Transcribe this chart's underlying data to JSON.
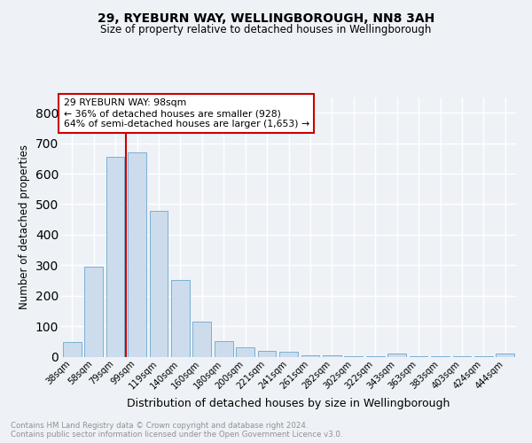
{
  "title1": "29, RYEBURN WAY, WELLINGBOROUGH, NN8 3AH",
  "title2": "Size of property relative to detached houses in Wellingborough",
  "xlabel": "Distribution of detached houses by size in Wellingborough",
  "ylabel": "Number of detached properties",
  "categories": [
    "38sqm",
    "58sqm",
    "79sqm",
    "99sqm",
    "119sqm",
    "140sqm",
    "160sqm",
    "180sqm",
    "200sqm",
    "221sqm",
    "241sqm",
    "261sqm",
    "282sqm",
    "302sqm",
    "322sqm",
    "343sqm",
    "363sqm",
    "383sqm",
    "403sqm",
    "424sqm",
    "444sqm"
  ],
  "values": [
    47,
    295,
    655,
    670,
    477,
    252,
    115,
    52,
    30,
    20,
    15,
    5,
    3,
    2,
    2,
    10,
    2,
    1,
    1,
    1,
    10
  ],
  "bar_color": "#ccdcec",
  "bar_edge_color": "#7bafd4",
  "annotation_box_text": "29 RYEBURN WAY: 98sqm\n← 36% of detached houses are smaller (928)\n64% of semi-detached houses are larger (1,653) →",
  "annotation_box_color": "#ffffff",
  "annotation_box_edge_color": "#cc0000",
  "vline_color": "#cc0000",
  "footnote": "Contains HM Land Registry data © Crown copyright and database right 2024.\nContains public sector information licensed under the Open Government Licence v3.0.",
  "ylim": [
    0,
    850
  ],
  "yticks": [
    0,
    100,
    200,
    300,
    400,
    500,
    600,
    700,
    800
  ],
  "background_color": "#eef2f7",
  "grid_color": "#ffffff"
}
